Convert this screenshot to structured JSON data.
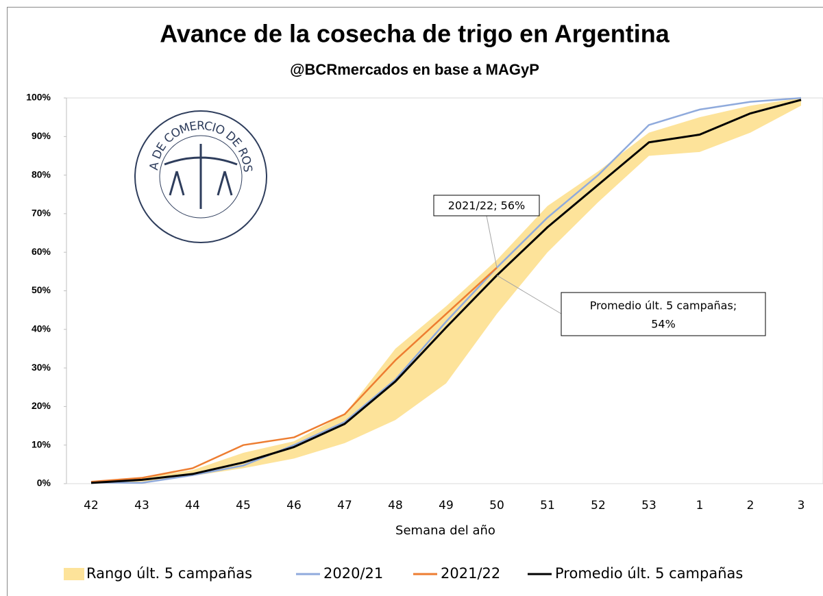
{
  "chart_data": {
    "type": "line",
    "title": "Avance de la cosecha de trigo en Argentina",
    "subtitle": "@BCRmercados en base a MAGyP",
    "x_label": "Semana del año",
    "logo_text": "BOLSA DE COMERCIO DE ROSARIO",
    "categories": [
      "42",
      "43",
      "44",
      "45",
      "46",
      "47",
      "48",
      "49",
      "50",
      "51",
      "52",
      "53",
      "1",
      "2",
      "3"
    ],
    "range": {
      "name": "Rango últ. 5 campañas",
      "color": "#fde39a",
      "low": [
        0,
        0.5,
        2,
        4,
        6.5,
        10.5,
        16.5,
        26,
        44,
        60,
        73,
        85,
        86,
        91,
        98
      ],
      "high": [
        0.5,
        1.5,
        3.5,
        8,
        11,
        18,
        35,
        46,
        58,
        72,
        81,
        91,
        95,
        98,
        100
      ]
    },
    "series": [
      {
        "name": "2020/21",
        "color": "#8faadc",
        "values": [
          0.3,
          0.2,
          2.2,
          4.7,
          10,
          16,
          27,
          42,
          56,
          69,
          80,
          93,
          97,
          99,
          100
        ]
      },
      {
        "name": "2021/22",
        "color": "#ed7d31",
        "values": [
          0.5,
          1.5,
          4,
          10,
          12,
          18,
          32,
          44,
          56,
          null,
          null,
          null,
          null,
          null,
          null
        ]
      },
      {
        "name": "Promedio últ. 5 campañas",
        "color": "#000000",
        "values": [
          0.2,
          1,
          2.5,
          5.5,
          9.5,
          15.5,
          26.5,
          40.5,
          54,
          66.5,
          77.5,
          88.5,
          90.5,
          96,
          99.5
        ]
      }
    ],
    "annotations": [
      {
        "text": "2021/22; 56%",
        "series": 1,
        "index": 8
      },
      {
        "text": "Promedio últ. 5 campañas;",
        "text2": "54%",
        "series": 2,
        "index": 8
      }
    ],
    "ylim": [
      0,
      100
    ],
    "yticks": [
      {
        "value": 0,
        "label": "0%"
      },
      {
        "value": 10,
        "label": "10%"
      },
      {
        "value": 20,
        "label": "20%"
      },
      {
        "value": 30,
        "label": "30%"
      },
      {
        "value": 40,
        "label": "40%"
      },
      {
        "value": 50,
        "label": "50%"
      },
      {
        "value": 60,
        "label": "60%"
      },
      {
        "value": 70,
        "label": "70%"
      },
      {
        "value": 80,
        "label": "80%"
      },
      {
        "value": 90,
        "label": "90%"
      },
      {
        "value": 100,
        "label": "100%"
      }
    ],
    "legend": "bottom"
  }
}
